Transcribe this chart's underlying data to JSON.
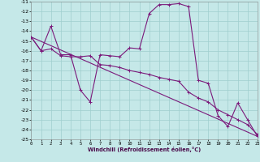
{
  "xlabel": "Windchill (Refroidissement éolien,°C)",
  "background_color": "#c5e8e8",
  "grid_color": "#9fcece",
  "line_color": "#7b1a7b",
  "ylim": [
    -25,
    -11
  ],
  "xlim": [
    0,
    23
  ],
  "yticks": [
    -25,
    -24,
    -23,
    -22,
    -21,
    -20,
    -19,
    -18,
    -17,
    -16,
    -15,
    -14,
    -13,
    -12,
    -11
  ],
  "xticks": [
    0,
    1,
    2,
    3,
    4,
    5,
    6,
    7,
    8,
    9,
    10,
    11,
    12,
    13,
    14,
    15,
    16,
    17,
    18,
    19,
    20,
    21,
    22,
    23
  ],
  "series1_x": [
    0,
    1,
    2,
    3,
    4,
    5,
    6,
    7,
    8,
    9,
    10,
    11,
    12,
    13,
    14,
    15,
    16,
    17,
    18,
    19,
    20,
    21,
    22,
    23
  ],
  "series1_y": [
    -14.6,
    -16.0,
    -13.5,
    -16.4,
    -16.4,
    -20.0,
    -21.2,
    -16.4,
    -16.5,
    -16.6,
    -15.7,
    -15.8,
    -12.2,
    -11.3,
    -11.3,
    -11.2,
    -11.5,
    -19.0,
    -19.3,
    -22.6,
    -23.7,
    -21.3,
    -23.0,
    -24.7
  ],
  "series2_x": [
    0,
    1,
    2,
    3,
    4,
    5,
    6,
    7,
    8,
    9,
    10,
    11,
    12,
    13,
    14,
    15,
    16,
    17,
    18,
    19,
    20,
    21,
    22,
    23
  ],
  "series2_y": [
    -14.6,
    -16.0,
    -15.8,
    -16.5,
    -16.6,
    -16.6,
    -16.5,
    -17.4,
    -17.5,
    -17.7,
    -18.0,
    -18.2,
    -18.4,
    -18.7,
    -18.9,
    -19.1,
    -20.2,
    -20.8,
    -21.2,
    -22.0,
    -22.5,
    -23.0,
    -23.5,
    -24.5
  ],
  "series3_x": [
    0,
    23
  ],
  "series3_y": [
    -14.6,
    -24.7
  ]
}
